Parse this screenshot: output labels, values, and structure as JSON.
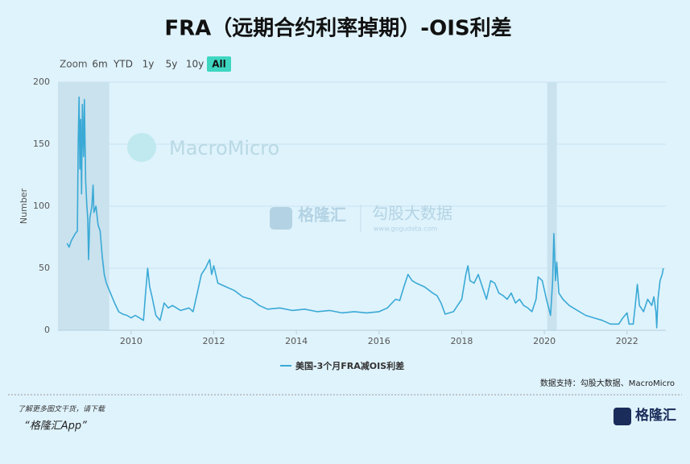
{
  "chart_data": {
    "type": "line",
    "title": "FRA（远期合约利率掉期）-OIS利差",
    "y_label": "Number",
    "x": [
      2008.45,
      2008.5,
      2008.55,
      2008.6,
      2008.65,
      2008.7,
      2008.72,
      2008.74,
      2008.76,
      2008.78,
      2008.8,
      2008.82,
      2008.85,
      2008.87,
      2008.9,
      2008.93,
      2008.95,
      2008.97,
      2009.0,
      2009.05,
      2009.08,
      2009.1,
      2009.15,
      2009.2,
      2009.25,
      2009.3,
      2009.35,
      2009.4,
      2009.5,
      2009.6,
      2009.7,
      2009.8,
      2009.9,
      2010.0,
      2010.1,
      2010.2,
      2010.3,
      2010.35,
      2010.4,
      2010.45,
      2010.5,
      2010.6,
      2010.7,
      2010.8,
      2010.9,
      2011.0,
      2011.2,
      2011.4,
      2011.5,
      2011.6,
      2011.7,
      2011.8,
      2011.9,
      2011.95,
      2012.0,
      2012.1,
      2012.3,
      2012.5,
      2012.7,
      2012.9,
      2013.1,
      2013.3,
      2013.6,
      2013.9,
      2014.2,
      2014.5,
      2014.8,
      2015.1,
      2015.4,
      2015.7,
      2016.0,
      2016.2,
      2016.4,
      2016.5,
      2016.6,
      2016.7,
      2016.8,
      2016.9,
      2017.1,
      2017.3,
      2017.4,
      2017.5,
      2017.6,
      2017.8,
      2017.9,
      2018.0,
      2018.1,
      2018.15,
      2018.2,
      2018.3,
      2018.4,
      2018.5,
      2018.6,
      2018.7,
      2018.8,
      2018.9,
      2019.0,
      2019.1,
      2019.2,
      2019.3,
      2019.4,
      2019.5,
      2019.6,
      2019.7,
      2019.8,
      2019.85,
      2019.95,
      2020.05,
      2020.15,
      2020.2,
      2020.23,
      2020.27,
      2020.3,
      2020.35,
      2020.45,
      2020.6,
      2020.8,
      2021.0,
      2021.2,
      2021.4,
      2021.6,
      2021.8,
      2021.9,
      2022.0,
      2022.05,
      2022.15,
      2022.2,
      2022.25,
      2022.3,
      2022.4,
      2022.5,
      2022.6,
      2022.65,
      2022.7,
      2022.72,
      2022.75,
      2022.8,
      2022.85,
      2022.88
    ],
    "series": [
      {
        "name": "美国-3个月FRA减OIS利差",
        "color": "#3aa9d6",
        "values": [
          70,
          67,
          72,
          75,
          78,
          80,
          150,
          188,
          130,
          170,
          110,
          182,
          140,
          186,
          120,
          100,
          90,
          57,
          90,
          100,
          117,
          95,
          100,
          85,
          80,
          60,
          45,
          38,
          30,
          22,
          15,
          13,
          12,
          10,
          12,
          10,
          8,
          30,
          50,
          35,
          28,
          12,
          8,
          22,
          18,
          20,
          16,
          18,
          15,
          30,
          45,
          50,
          57,
          45,
          52,
          38,
          35,
          32,
          27,
          25,
          20,
          17,
          18,
          16,
          17,
          15,
          16,
          14,
          15,
          14,
          15,
          18,
          25,
          24,
          35,
          45,
          40,
          38,
          35,
          30,
          28,
          22,
          13,
          15,
          20,
          25,
          45,
          52,
          40,
          38,
          45,
          35,
          25,
          40,
          38,
          30,
          28,
          25,
          30,
          22,
          25,
          20,
          18,
          15,
          25,
          43,
          40,
          25,
          12,
          40,
          78,
          40,
          55,
          30,
          25,
          20,
          16,
          12,
          10,
          8,
          5,
          5,
          10,
          14,
          5,
          5,
          20,
          37,
          20,
          15,
          25,
          20,
          27,
          15,
          2,
          25,
          40,
          45,
          50
        ]
      }
    ],
    "xlim": [
      2008.23,
      2022.94
    ],
    "xticks": [
      2010,
      2012,
      2014,
      2016,
      2018,
      2020,
      2022
    ],
    "ylim": [
      0,
      200
    ],
    "yticks": [
      0,
      50,
      100,
      150,
      200
    ],
    "grid": true,
    "bands": [
      [
        2008.23,
        2009.47
      ],
      [
        2020.07,
        2020.3
      ]
    ],
    "band_color": "#c9e2ee"
  },
  "toolbar": {
    "label": "Zoom",
    "buttons": [
      "6m",
      "YTD",
      "1y",
      "5y",
      "10y",
      "All"
    ],
    "active": 5
  },
  "watermarks": [
    "MacroMicro",
    "格隆汇",
    "勾股大数据",
    "www.gogudata.com"
  ],
  "source": "数据支持：勾股大数据、MacroMicro",
  "footer": [
    "了解更多图文干货，请下载",
    "“格隆汇App”"
  ],
  "logo": "格隆汇"
}
